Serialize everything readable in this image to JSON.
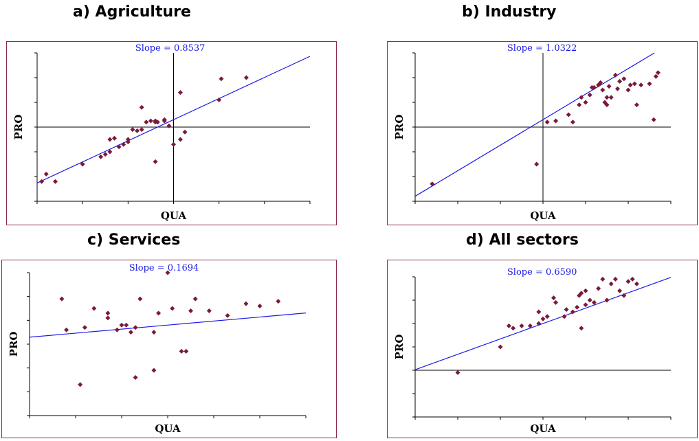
{
  "panels": [
    {
      "title": "a) Agriculture"
    },
    {
      "title": "b) Industry"
    },
    {
      "title": "c) Services"
    },
    {
      "title": "d) All sectors"
    }
  ],
  "colors": {
    "frame": "#8a2a4a",
    "point": "#7a1a3a",
    "fit_line": "#1a1ae6",
    "axis": "#000000"
  },
  "chart_data": [
    {
      "type": "scatter",
      "title": "a) Agriculture",
      "xlabel": "QUA",
      "ylabel": "PRO",
      "slope_label": "Slope = 0.8537",
      "xlim": [
        -3,
        3
      ],
      "ylim": [
        -3,
        3
      ],
      "xticks": [
        -3,
        -2,
        -1,
        0,
        1,
        2,
        3
      ],
      "yticks": [
        -3,
        -2,
        -1,
        0,
        1,
        2,
        3
      ],
      "reference_lines": {
        "x": 0,
        "y": 0
      },
      "fit": {
        "slope": 0.8537,
        "intercept": 0.3
      },
      "points": [
        [
          -2.9,
          -2.2
        ],
        [
          -2.8,
          -1.9
        ],
        [
          -2.6,
          -2.2
        ],
        [
          -2.0,
          -1.5
        ],
        [
          -1.6,
          -1.2
        ],
        [
          -1.5,
          -1.1
        ],
        [
          -1.4,
          -1.0
        ],
        [
          -1.4,
          -0.5
        ],
        [
          -1.3,
          -0.45
        ],
        [
          -1.2,
          -0.8
        ],
        [
          -1.1,
          -0.7
        ],
        [
          -1.0,
          -0.6
        ],
        [
          -1.0,
          -0.5
        ],
        [
          -0.9,
          -0.1
        ],
        [
          -0.8,
          -0.15
        ],
        [
          -0.7,
          -0.1
        ],
        [
          -0.6,
          0.2
        ],
        [
          -0.5,
          0.25
        ],
        [
          -0.4,
          0.25
        ],
        [
          -0.4,
          -1.4
        ],
        [
          -0.2,
          0.3
        ],
        [
          -0.4,
          0.2
        ],
        [
          -0.35,
          0.2
        ],
        [
          -0.1,
          0.05
        ],
        [
          -0.2,
          0.25
        ],
        [
          0.0,
          -0.7
        ],
        [
          0.15,
          -0.5
        ],
        [
          0.25,
          -0.2
        ],
        [
          0.15,
          1.4
        ],
        [
          1.0,
          1.1
        ],
        [
          1.05,
          1.95
        ],
        [
          1.6,
          2.0
        ],
        [
          -0.7,
          0.8
        ]
      ]
    },
    {
      "type": "scatter",
      "title": "b) Industry",
      "xlabel": "QUA",
      "ylabel": "PRO",
      "slope_label": "Slope = 1.0322",
      "xlim": [
        -3,
        3
      ],
      "ylim": [
        -3,
        3
      ],
      "xticks": [
        -3,
        -2,
        -1,
        0,
        1,
        2,
        3
      ],
      "yticks": [
        -3,
        -2,
        -1,
        0,
        1,
        2,
        3
      ],
      "reference_lines": {
        "x": 0,
        "y": 0
      },
      "fit": {
        "slope": 1.0322,
        "intercept": 0.3
      },
      "points": [
        [
          -2.6,
          -2.3
        ],
        [
          -0.15,
          -1.5
        ],
        [
          0.1,
          0.2
        ],
        [
          0.3,
          0.25
        ],
        [
          0.6,
          0.5
        ],
        [
          0.7,
          0.2
        ],
        [
          0.85,
          0.9
        ],
        [
          0.9,
          1.2
        ],
        [
          1.0,
          1.0
        ],
        [
          1.1,
          1.3
        ],
        [
          1.15,
          1.6
        ],
        [
          1.2,
          1.6
        ],
        [
          1.3,
          1.7
        ],
        [
          1.35,
          1.8
        ],
        [
          1.4,
          1.5
        ],
        [
          1.45,
          1.0
        ],
        [
          1.5,
          0.9
        ],
        [
          1.5,
          1.2
        ],
        [
          1.55,
          1.65
        ],
        [
          1.6,
          1.2
        ],
        [
          1.7,
          2.1
        ],
        [
          1.75,
          1.55
        ],
        [
          1.8,
          1.85
        ],
        [
          1.9,
          1.95
        ],
        [
          2.0,
          1.5
        ],
        [
          2.05,
          1.7
        ],
        [
          2.15,
          1.75
        ],
        [
          2.2,
          0.9
        ],
        [
          2.3,
          1.7
        ],
        [
          2.5,
          1.75
        ],
        [
          2.6,
          0.3
        ],
        [
          2.65,
          2.05
        ],
        [
          2.7,
          2.2
        ]
      ]
    },
    {
      "type": "scatter",
      "title": "c) Services",
      "xlabel": "QUA",
      "ylabel": "PRO",
      "slope_label": "Slope = 0.1694",
      "xlim": [
        -3,
        3
      ],
      "ylim": [
        -3,
        3
      ],
      "xticks": [
        -3,
        -2,
        -1,
        0,
        1,
        2,
        3
      ],
      "yticks": [
        -3,
        -2,
        -1,
        0,
        1,
        2,
        3
      ],
      "reference_lines": {},
      "fit": {
        "slope": 0.1694,
        "intercept": 0.8
      },
      "points": [
        [
          -2.3,
          1.9
        ],
        [
          -2.2,
          0.6
        ],
        [
          -1.9,
          -1.7
        ],
        [
          -1.8,
          0.7
        ],
        [
          -1.6,
          1.5
        ],
        [
          -1.3,
          1.1
        ],
        [
          -1.3,
          1.3
        ],
        [
          -1.1,
          0.6
        ],
        [
          -1.0,
          0.8
        ],
        [
          -0.9,
          0.8
        ],
        [
          -0.8,
          0.5
        ],
        [
          -0.7,
          0.7
        ],
        [
          -0.7,
          -1.4
        ],
        [
          -0.6,
          1.9
        ],
        [
          -0.3,
          -1.1
        ],
        [
          -0.3,
          0.5
        ],
        [
          -0.2,
          1.3
        ],
        [
          0.1,
          1.5
        ],
        [
          0.3,
          -0.3
        ],
        [
          0.4,
          -0.3
        ],
        [
          0.5,
          1.4
        ],
        [
          0.6,
          1.9
        ],
        [
          0.9,
          1.4
        ],
        [
          1.3,
          1.2
        ],
        [
          1.7,
          1.7
        ],
        [
          2.0,
          1.6
        ],
        [
          2.4,
          1.8
        ],
        [
          0.0,
          3.0
        ]
      ]
    },
    {
      "type": "scatter",
      "title": "d) All sectors",
      "xlabel": "QUA",
      "ylabel": "PRO",
      "slope_label": "Slope = 0.6590",
      "xlim": [
        -3,
        3
      ],
      "ylim": [
        -3,
        3
      ],
      "xticks": [
        -3,
        -2,
        -1,
        0,
        1,
        2,
        3
      ],
      "yticks": [
        -3,
        -2,
        -1,
        0,
        1,
        2,
        3
      ],
      "reference_lines": {
        "y": -1
      },
      "fit": {
        "slope": 0.659,
        "intercept": 1.0
      },
      "points": [
        [
          -2.0,
          -1.1
        ],
        [
          -1.0,
          0.0
        ],
        [
          -0.8,
          0.9
        ],
        [
          -0.7,
          0.8
        ],
        [
          -0.5,
          0.9
        ],
        [
          -0.3,
          0.9
        ],
        [
          -0.1,
          1.0
        ],
        [
          -0.1,
          1.5
        ],
        [
          0.0,
          1.2
        ],
        [
          0.1,
          1.3
        ],
        [
          0.25,
          2.1
        ],
        [
          0.3,
          1.9
        ],
        [
          0.5,
          1.3
        ],
        [
          0.55,
          1.6
        ],
        [
          0.7,
          1.5
        ],
        [
          0.8,
          1.7
        ],
        [
          0.85,
          2.2
        ],
        [
          0.9,
          2.3
        ],
        [
          1.0,
          2.4
        ],
        [
          1.0,
          1.8
        ],
        [
          1.1,
          2.0
        ],
        [
          1.2,
          1.9
        ],
        [
          1.3,
          2.5
        ],
        [
          1.4,
          2.9
        ],
        [
          1.5,
          2.0
        ],
        [
          1.6,
          2.7
        ],
        [
          1.7,
          2.9
        ],
        [
          1.8,
          2.4
        ],
        [
          1.9,
          2.2
        ],
        [
          2.0,
          2.8
        ],
        [
          2.1,
          2.9
        ],
        [
          2.2,
          2.7
        ],
        [
          0.9,
          0.8
        ]
      ]
    }
  ]
}
